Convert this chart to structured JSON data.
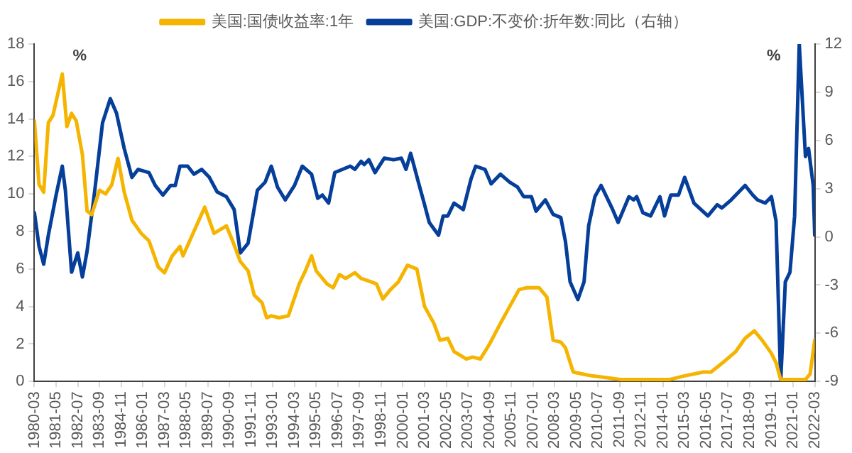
{
  "chart_data": {
    "type": "line",
    "xlim": [
      "1980-03",
      "2022-03"
    ],
    "xticks": [
      "1980-03",
      "1981-05",
      "1982-07",
      "1983-09",
      "1984-11",
      "1986-01",
      "1987-03",
      "1988-05",
      "1989-07",
      "1990-09",
      "1991-11",
      "1993-01",
      "1994-03",
      "1995-05",
      "1996-07",
      "1997-09",
      "1998-11",
      "2000-01",
      "2001-03",
      "2002-05",
      "2003-07",
      "2004-09",
      "2005-11",
      "2007-01",
      "2008-03",
      "2009-05",
      "2010-07",
      "2011-09",
      "2012-11",
      "2014-01",
      "2015-03",
      "2016-05",
      "2017-07",
      "2018-09",
      "2019-11",
      "2021-01",
      "2022-03"
    ],
    "ylim": [
      0,
      18
    ],
    "yticks": [
      0,
      2,
      4,
      6,
      8,
      10,
      12,
      14,
      16,
      18
    ],
    "y2lim": [
      -9,
      12
    ],
    "y2ticks": [
      -9,
      -6,
      -3,
      0,
      3,
      6,
      9,
      12
    ],
    "annotations": [
      "%",
      "%"
    ],
    "legend": "top",
    "grid": false,
    "marker": "none",
    "line_style": "solid",
    "series": [
      {
        "name": "美国:国债收益率:1年",
        "color": "#f5b400",
        "x": [
          "1980-03",
          "1980-06",
          "1980-09",
          "1980-12",
          "1981-03",
          "1981-09",
          "1981-12",
          "1982-03",
          "1982-06",
          "1982-10",
          "1983-01",
          "1983-04",
          "1983-09",
          "1984-01",
          "1984-05",
          "1984-09",
          "1985-01",
          "1985-06",
          "1985-12",
          "1986-05",
          "1986-11",
          "1987-03",
          "1987-08",
          "1988-01",
          "1988-03",
          "1988-10",
          "1989-05",
          "1989-11",
          "1990-07",
          "1990-11",
          "1991-04",
          "1991-09",
          "1992-01",
          "1992-06",
          "1992-09",
          "1992-12",
          "1993-05",
          "1993-11",
          "1994-06",
          "1994-10",
          "1995-02",
          "1995-05",
          "1995-12",
          "1996-04",
          "1996-08",
          "1996-12",
          "1997-06",
          "1997-10",
          "1998-05",
          "1998-08",
          "1998-12",
          "1999-05",
          "1999-10",
          "2000-04",
          "2000-10",
          "2001-03",
          "2001-09",
          "2002-01",
          "2002-06",
          "2002-10",
          "2003-06",
          "2003-10",
          "2004-03",
          "2004-09",
          "2005-04",
          "2005-10",
          "2006-04",
          "2006-09",
          "2007-05",
          "2007-10",
          "2008-02",
          "2008-07",
          "2008-10",
          "2009-03",
          "2009-09",
          "2010-03",
          "2011-01",
          "2011-10",
          "2012-11",
          "2014-05",
          "2015-03",
          "2016-03",
          "2016-08",
          "2017-05",
          "2017-12",
          "2018-06",
          "2018-12",
          "2019-05",
          "2019-11",
          "2020-02",
          "2020-05",
          "2020-12",
          "2021-09",
          "2021-12",
          "2022-03"
        ],
        "values": [
          13.9,
          10.5,
          10.1,
          13.8,
          14.2,
          16.4,
          13.6,
          14.3,
          13.9,
          12.1,
          9.1,
          8.9,
          10.2,
          10.0,
          10.5,
          11.9,
          10.1,
          8.6,
          7.9,
          7.5,
          6.1,
          5.8,
          6.7,
          7.2,
          6.7,
          8.0,
          9.3,
          7.9,
          8.3,
          7.5,
          6.4,
          5.9,
          4.6,
          4.2,
          3.4,
          3.5,
          3.4,
          3.5,
          5.2,
          5.9,
          6.7,
          5.9,
          5.2,
          5.0,
          5.7,
          5.5,
          5.8,
          5.5,
          5.3,
          5.2,
          4.4,
          4.9,
          5.3,
          6.2,
          6.0,
          4.0,
          3.1,
          2.2,
          2.3,
          1.6,
          1.2,
          1.3,
          1.2,
          2.0,
          3.1,
          4.0,
          4.9,
          5.0,
          5.0,
          4.5,
          2.2,
          2.1,
          1.8,
          0.5,
          0.4,
          0.3,
          0.2,
          0.1,
          0.1,
          0.1,
          0.3,
          0.5,
          0.5,
          1.1,
          1.6,
          2.3,
          2.7,
          2.2,
          1.5,
          1.0,
          0.1,
          0.1,
          0.1,
          0.4,
          2.2
        ]
      },
      {
        "name": "美国:GDP:不变价:折年数:同比（右轴）",
        "color": "#063f9a",
        "axis": "y2",
        "x": [
          "1980-03",
          "1980-06",
          "1980-09",
          "1980-12",
          "1981-05",
          "1981-09",
          "1981-11",
          "1982-03",
          "1982-07",
          "1982-10",
          "1983-01",
          "1983-06",
          "1983-11",
          "1984-04",
          "1984-08",
          "1985-01",
          "1985-06",
          "1985-10",
          "1986-05",
          "1986-09",
          "1987-02",
          "1987-07",
          "1987-10",
          "1988-01",
          "1988-06",
          "1988-10",
          "1989-03",
          "1989-08",
          "1990-01",
          "1990-07",
          "1990-12",
          "1991-04",
          "1991-09",
          "1992-03",
          "1992-08",
          "1992-12",
          "1993-04",
          "1993-09",
          "1994-03",
          "1994-08",
          "1995-02",
          "1995-06",
          "1995-09",
          "1996-01",
          "1996-05",
          "1996-10",
          "1997-03",
          "1997-06",
          "1997-10",
          "1997-12",
          "1998-03",
          "1998-07",
          "1999-01",
          "1999-07",
          "1999-12",
          "2000-03",
          "2000-06",
          "2000-11",
          "2001-03",
          "2001-06",
          "2001-12",
          "2002-03",
          "2002-06",
          "2002-10",
          "2003-04",
          "2003-09",
          "2003-12",
          "2004-06",
          "2004-10",
          "2005-04",
          "2005-10",
          "2006-03",
          "2006-07",
          "2006-12",
          "2007-03",
          "2007-09",
          "2008-02",
          "2008-07",
          "2008-10",
          "2009-01",
          "2009-06",
          "2009-10",
          "2010-01",
          "2010-05",
          "2010-09",
          "2011-04",
          "2011-08",
          "2012-03",
          "2012-06",
          "2012-08",
          "2012-12",
          "2013-05",
          "2013-11",
          "2014-02",
          "2014-06",
          "2014-11",
          "2015-03",
          "2015-09",
          "2016-06",
          "2016-12",
          "2017-03",
          "2017-09",
          "2018-02",
          "2018-06",
          "2018-11",
          "2019-02",
          "2019-07",
          "2019-11",
          "2020-02",
          "2020-05",
          "2020-08",
          "2020-11",
          "2021-02",
          "2021-05",
          "2021-09",
          "2021-11",
          "2022-02",
          "2022-03"
        ],
        "values": [
          1.5,
          -0.6,
          -1.7,
          0.1,
          2.6,
          4.4,
          2.9,
          -2.2,
          -1.0,
          -2.5,
          -0.9,
          2.9,
          7.1,
          8.6,
          7.7,
          5.5,
          3.7,
          4.2,
          4.0,
          3.2,
          2.6,
          3.2,
          3.2,
          4.4,
          4.4,
          3.9,
          4.2,
          3.7,
          2.8,
          2.5,
          1.7,
          -1.0,
          -0.4,
          2.9,
          3.4,
          4.4,
          3.1,
          2.3,
          3.2,
          4.4,
          3.9,
          2.4,
          2.6,
          2.1,
          4.0,
          4.2,
          4.4,
          4.2,
          4.7,
          4.5,
          4.8,
          4.0,
          4.9,
          4.8,
          4.9,
          4.2,
          5.2,
          3.4,
          2.0,
          0.9,
          0.1,
          1.3,
          1.3,
          2.1,
          1.7,
          3.6,
          4.4,
          4.2,
          3.3,
          3.9,
          3.4,
          3.1,
          2.5,
          2.5,
          1.6,
          2.3,
          1.4,
          1.2,
          -0.3,
          -2.8,
          -3.9,
          -2.8,
          0.7,
          2.5,
          3.2,
          1.8,
          0.9,
          2.5,
          2.3,
          2.5,
          1.5,
          1.3,
          2.5,
          1.3,
          2.6,
          2.6,
          3.7,
          2.1,
          1.3,
          2.0,
          1.8,
          2.3,
          2.8,
          3.2,
          2.6,
          2.3,
          2.1,
          2.5,
          1.0,
          -9,
          -2.8,
          -2.2,
          1.3,
          12,
          5.0,
          5.5,
          3.2,
          0.1
        ]
      }
    ]
  }
}
